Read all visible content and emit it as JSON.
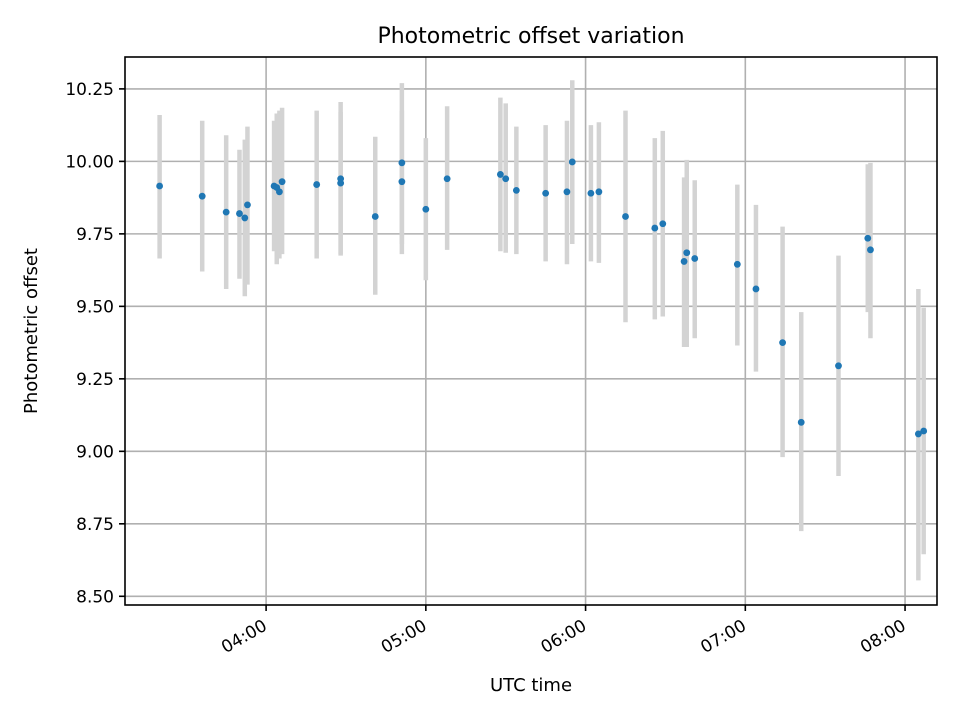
{
  "chart_data": {
    "type": "scatter",
    "title": "Photometric offset variation",
    "xlabel": "UTC time",
    "ylabel": "Photometric offset",
    "x_axis": {
      "kind": "time",
      "range": [
        "03:07",
        "08:12"
      ],
      "ticks": [
        "04:00",
        "05:00",
        "06:00",
        "07:00",
        "08:00"
      ]
    },
    "y_axis": {
      "range": [
        8.47,
        10.36
      ],
      "ticks": [
        "8.50",
        "8.75",
        "9.00",
        "9.25",
        "9.50",
        "9.75",
        "10.00",
        "10.25"
      ]
    },
    "grid": true,
    "legend": "none",
    "colors": {
      "point": "#1f77b4",
      "errorbar": "#d3d3d3"
    },
    "series": [
      {
        "x": [
          "03:20",
          "03:36",
          "03:45",
          "03:50",
          "03:52",
          "03:53",
          "04:03",
          "04:04",
          "04:05",
          "04:06",
          "04:19",
          "04:28",
          "04:28",
          "04:41",
          "04:51",
          "04:51",
          "05:00",
          "05:08",
          "05:28",
          "05:30",
          "05:34",
          "05:45",
          "05:53",
          "05:55",
          "06:02",
          "06:05",
          "06:15",
          "06:26",
          "06:29",
          "06:37",
          "06:38",
          "06:41",
          "06:57",
          "07:04",
          "07:14",
          "07:21",
          "07:35",
          "07:46",
          "07:47",
          "08:05",
          "08:07"
        ],
        "y": [
          9.915,
          9.88,
          9.825,
          9.82,
          9.805,
          9.85,
          9.915,
          9.91,
          9.895,
          9.93,
          9.92,
          9.925,
          9.94,
          9.81,
          9.93,
          9.995,
          9.835,
          9.94,
          9.955,
          9.94,
          9.9,
          9.89,
          9.895,
          9.998,
          9.89,
          9.895,
          9.81,
          9.77,
          9.785,
          9.655,
          9.685,
          9.665,
          9.645,
          9.56,
          9.375,
          9.1,
          9.295,
          9.735,
          9.695,
          9.06,
          9.07
        ],
        "ylow": [
          9.665,
          9.62,
          9.56,
          9.595,
          9.535,
          9.575,
          9.69,
          9.645,
          9.665,
          9.68,
          9.665,
          9.675,
          9.68,
          9.54,
          9.68,
          9.715,
          9.59,
          9.695,
          9.69,
          9.685,
          9.68,
          9.655,
          9.645,
          9.715,
          9.655,
          9.65,
          9.445,
          9.455,
          9.465,
          9.36,
          9.36,
          9.39,
          9.365,
          9.275,
          8.98,
          8.725,
          8.915,
          9.48,
          9.39,
          8.555,
          8.645
        ],
        "yhigh": [
          10.16,
          10.14,
          10.09,
          10.04,
          10.075,
          10.12,
          10.14,
          10.165,
          10.175,
          10.185,
          10.175,
          10.17,
          10.205,
          10.085,
          10.175,
          10.27,
          10.08,
          10.19,
          10.22,
          10.2,
          10.12,
          10.125,
          10.14,
          10.28,
          10.125,
          10.135,
          10.175,
          10.08,
          10.105,
          9.945,
          10.005,
          9.935,
          9.92,
          9.85,
          9.775,
          9.48,
          9.675,
          9.99,
          9.995,
          9.56,
          9.495
        ]
      }
    ]
  }
}
